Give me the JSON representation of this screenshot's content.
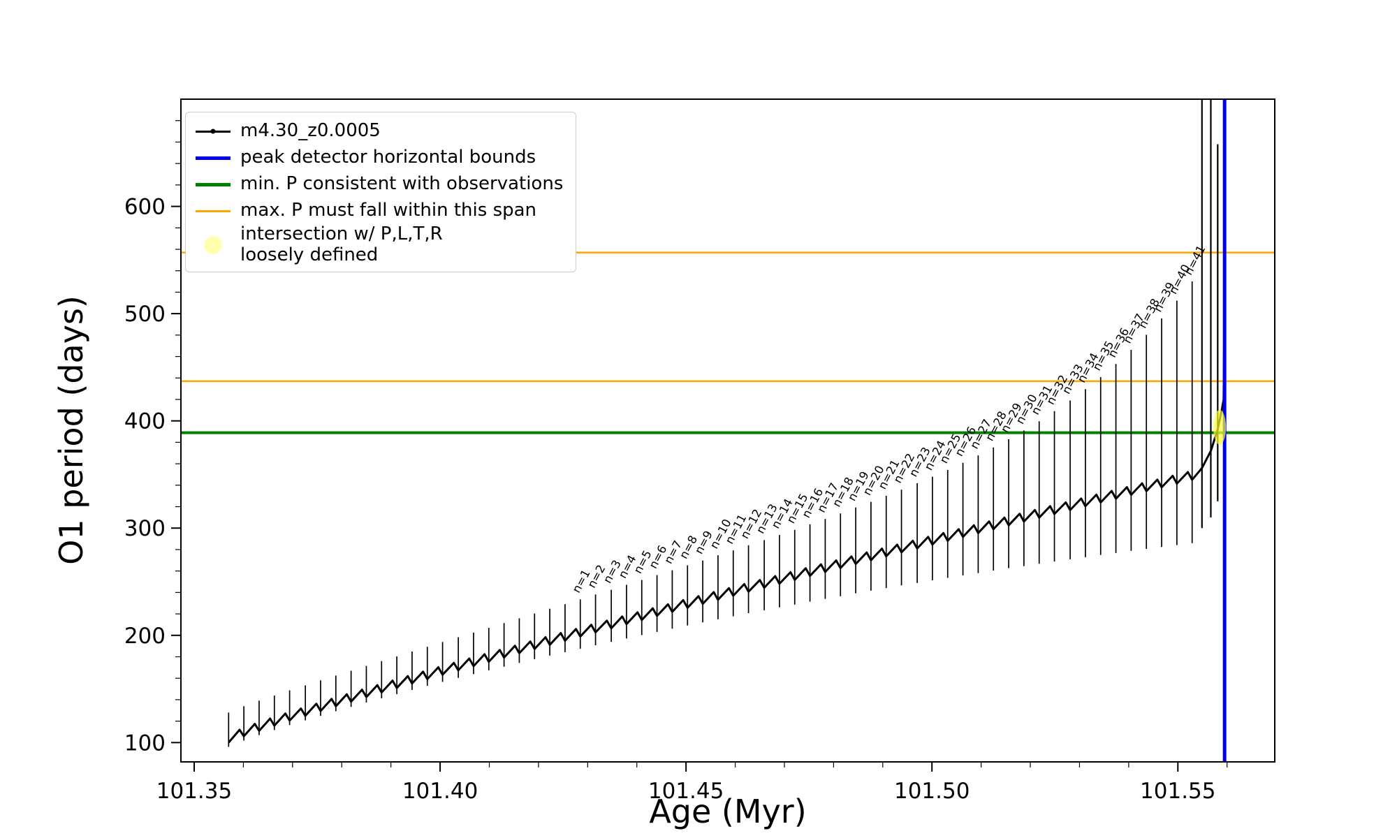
{
  "figure": {
    "xlabel": "Age (Myr)",
    "ylabel": "O1 period (days)"
  },
  "legend": {
    "items": [
      {
        "label": "m4.30_z0.0005",
        "color": "#000000",
        "type": "line-marker"
      },
      {
        "label": "peak detector horizontal bounds",
        "color": "#0000ee",
        "type": "line-thick"
      },
      {
        "label": "min. P consistent with observations",
        "color": "#008000",
        "type": "line-thick"
      },
      {
        "label": "max. P must fall within this span",
        "color": "#ffa500",
        "type": "line"
      },
      {
        "label": "intersection w/ P,L,T,R\nloosely defined",
        "color": "#ffff33",
        "type": "blob"
      }
    ]
  },
  "chart_data": {
    "type": "line",
    "title": "",
    "xlabel": "Age (Myr)",
    "ylabel": "O1 period (days)",
    "series_name": "m4.30_z0.0005",
    "xlim": [
      101.3473,
      101.5697
    ],
    "ylim": [
      82,
      700
    ],
    "x_major_ticks": [
      101.35,
      101.4,
      101.45,
      101.5,
      101.55
    ],
    "x_tick_labels": [
      "101.35",
      "101.40",
      "101.45",
      "101.50",
      "101.55"
    ],
    "x_minor_step": 0.01,
    "y_major_ticks": [
      100,
      200,
      300,
      400,
      500,
      600
    ],
    "y_tick_labels": [
      "100",
      "200",
      "300",
      "400",
      "500",
      "600"
    ],
    "y_minor_step": 20,
    "grid": false,
    "legend_position": "upper left",
    "pulse_fields": [
      "age_myr",
      "interpulse_min_days",
      "spike_max_days",
      "spike_min_days",
      "pulse_number_label"
    ],
    "pulses": [
      [
        101.357,
        100,
        128,
        96,
        0
      ],
      [
        101.3601,
        105.9,
        133.9,
        101.9,
        0
      ],
      [
        101.3632,
        111,
        139.1,
        107,
        0
      ],
      [
        101.3663,
        115.8,
        143.9,
        111.7,
        0
      ],
      [
        101.3694,
        120.5,
        148.7,
        116.3,
        0
      ],
      [
        101.3726,
        125,
        153.3,
        120.7,
        0
      ],
      [
        101.3757,
        129.5,
        158,
        125,
        0
      ],
      [
        101.3788,
        133.9,
        162.5,
        129.2,
        0
      ],
      [
        101.3819,
        138.2,
        167,
        133.3,
        0
      ],
      [
        101.385,
        142.5,
        171.5,
        137.4,
        0
      ],
      [
        101.3881,
        146.7,
        176,
        141.3,
        0
      ],
      [
        101.3912,
        150.9,
        180.4,
        145.2,
        0
      ],
      [
        101.3943,
        155.1,
        184.9,
        149.1,
        0
      ],
      [
        101.3974,
        159.2,
        189.3,
        152.9,
        0
      ],
      [
        101.4005,
        163.3,
        193.8,
        156.6,
        0
      ],
      [
        101.4037,
        167.4,
        198.2,
        160.3,
        0
      ],
      [
        101.4068,
        171.3,
        202.5,
        163.8,
        0
      ],
      [
        101.4099,
        175.4,
        207,
        167.4,
        0
      ],
      [
        101.413,
        179.3,
        211.4,
        170.8,
        0
      ],
      [
        101.4161,
        183.3,
        215.9,
        174.3,
        0
      ],
      [
        101.4192,
        187.3,
        220.4,
        177.8,
        0
      ],
      [
        101.4223,
        191.2,
        224.8,
        181.1,
        0
      ],
      [
        101.4254,
        195,
        229.1,
        184.3,
        0
      ],
      [
        101.4285,
        198.9,
        233.6,
        187.6,
        1
      ],
      [
        101.4316,
        202.8,
        238.1,
        190.8,
        2
      ],
      [
        101.4348,
        206.6,
        242.5,
        193.9,
        3
      ],
      [
        101.4379,
        210.5,
        247.1,
        197.1,
        4
      ],
      [
        101.441,
        214.3,
        251.6,
        200.2,
        5
      ],
      [
        101.4441,
        218.1,
        256.2,
        203.2,
        6
      ],
      [
        101.4472,
        221.9,
        260.7,
        206.2,
        7
      ],
      [
        101.4503,
        225.7,
        265.3,
        209.2,
        8
      ],
      [
        101.4534,
        229.4,
        269.8,
        212.1,
        9
      ],
      [
        101.4565,
        233.2,
        274.7,
        215,
        10
      ],
      [
        101.4596,
        236.9,
        279.2,
        217.8,
        11
      ],
      [
        101.4627,
        240.7,
        284,
        220.7,
        12
      ],
      [
        101.4659,
        244.4,
        288.8,
        223.4,
        13
      ],
      [
        101.469,
        248.1,
        293.6,
        226.1,
        14
      ],
      [
        101.4721,
        251.7,
        298.4,
        228.7,
        15
      ],
      [
        101.4752,
        255.4,
        303.5,
        231.4,
        16
      ],
      [
        101.4783,
        259.1,
        308.5,
        234,
        17
      ],
      [
        101.4814,
        262.7,
        313.7,
        236.5,
        18
      ],
      [
        101.4845,
        266.5,
        319.2,
        239.2,
        19
      ],
      [
        101.4876,
        270.1,
        324.5,
        241.7,
        20
      ],
      [
        101.4907,
        273.7,
        330.1,
        244.1,
        21
      ],
      [
        101.4938,
        277.4,
        335.9,
        246.6,
        22
      ],
      [
        101.497,
        281,
        341.8,
        248.9,
        23
      ],
      [
        101.5001,
        284.6,
        347.9,
        251.3,
        24
      ],
      [
        101.5032,
        288.2,
        354.3,
        253.6,
        25
      ],
      [
        101.5063,
        291.8,
        360.9,
        255.9,
        26
      ],
      [
        101.5094,
        295.4,
        367.8,
        258.1,
        27
      ],
      [
        101.5125,
        299,
        375.2,
        260.4,
        28
      ],
      [
        101.5156,
        302.6,
        382.9,
        262.6,
        29
      ],
      [
        101.5187,
        306.1,
        391,
        264.6,
        30
      ],
      [
        101.5218,
        309.7,
        399.6,
        266.8,
        31
      ],
      [
        101.5249,
        313.2,
        409.1,
        268.8,
        32
      ],
      [
        101.5281,
        316.8,
        419,
        270.9,
        33
      ],
      [
        101.5312,
        320.4,
        429.6,
        272.9,
        34
      ],
      [
        101.5343,
        323.9,
        440.8,
        274.9,
        35
      ],
      [
        101.5374,
        327.4,
        453,
        276.8,
        36
      ],
      [
        101.5405,
        331,
        466.2,
        278.8,
        37
      ],
      [
        101.5436,
        334.5,
        480.3,
        280.6,
        38
      ],
      [
        101.5467,
        338,
        495.5,
        282.4,
        39
      ],
      [
        101.5498,
        341.5,
        512.1,
        284.2,
        40
      ],
      [
        101.5529,
        345,
        530,
        286,
        41
      ]
    ],
    "tail": [
      [
        101.5549,
        356
      ],
      [
        101.5567,
        372
      ],
      [
        101.5581,
        392
      ],
      [
        101.559,
        412
      ],
      [
        101.5593,
        420
      ],
      [
        101.5596,
        568
      ]
    ],
    "tall_spikes": [
      [
        101.5549,
        300,
        730
      ],
      [
        101.5567,
        310,
        730
      ],
      [
        101.5581,
        325,
        658
      ]
    ],
    "hlines": [
      {
        "y": 389,
        "color": "#008000",
        "width": 4
      },
      {
        "y": 437,
        "color": "#ffa500",
        "width": 2.5
      },
      {
        "y": 557,
        "color": "#ffa500",
        "width": 2.5
      }
    ],
    "vlines": [
      {
        "x": 101.5595,
        "color": "#0000ee",
        "width": 5
      }
    ],
    "intersection_marker": {
      "x": 101.5585,
      "y": 394,
      "color": "#ffff33",
      "opacity": 0.7
    }
  }
}
